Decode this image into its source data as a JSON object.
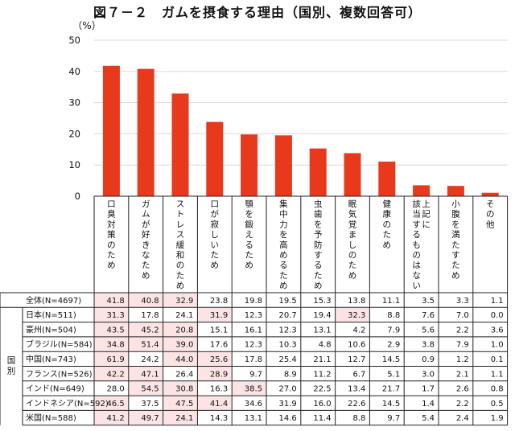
{
  "title": "図７－２　ガムを摂食する理由（国別、複数回答可）",
  "chart_data": {
    "type": "bar",
    "title": "図７－２　ガムを摂食する理由（国別、複数回答可）",
    "ylabel": "（%）",
    "ylim": [
      0,
      50
    ],
    "yticks": [
      0,
      10,
      20,
      30,
      40,
      50
    ],
    "bar_color": "#e8391d",
    "highlight_color": "#fce4e4",
    "categories": [
      "口臭対策のため",
      "ガムが好きなため",
      "ストレス緩和のため",
      "口が寂しいため",
      "顎を鍛えるため",
      "集中力を高めるため",
      "虫歯を予防するため",
      "眠気覚ましのため",
      "健康のため",
      "上記に該当するものはない",
      "小腹を満たすため",
      "その他"
    ],
    "values": [
      41.8,
      40.8,
      32.9,
      23.8,
      19.8,
      19.5,
      15.3,
      13.8,
      11.1,
      3.5,
      3.3,
      1.1
    ],
    "table": {
      "group_label": "国別",
      "rows": [
        {
          "label": "全体(N=4697)",
          "values": [
            "41.8",
            "40.8",
            "32.9",
            "23.8",
            "19.8",
            "19.5",
            "15.3",
            "13.8",
            "11.1",
            "3.5",
            "3.3",
            "1.1"
          ],
          "highlight": [
            0,
            1,
            2
          ]
        },
        {
          "label": "日本(N=511)",
          "values": [
            "31.3",
            "17.8",
            "24.1",
            "31.9",
            "12.3",
            "20.7",
            "19.4",
            "32.3",
            "8.8",
            "7.6",
            "7.0",
            "0.0"
          ],
          "highlight": [
            0,
            3,
            7
          ]
        },
        {
          "label": "豪州(N=504)",
          "values": [
            "43.5",
            "45.2",
            "20.8",
            "15.1",
            "16.1",
            "12.3",
            "13.1",
            "4.2",
            "7.9",
            "5.6",
            "2.2",
            "3.6"
          ],
          "highlight": [
            0,
            1,
            2
          ]
        },
        {
          "label": "ブラジル(N=584)",
          "values": [
            "34.8",
            "51.4",
            "39.0",
            "17.6",
            "12.3",
            "10.3",
            "4.8",
            "10.6",
            "2.9",
            "3.8",
            "7.9",
            "1.0"
          ],
          "highlight": [
            0,
            1,
            2
          ]
        },
        {
          "label": "中国(N=743)",
          "values": [
            "61.9",
            "24.2",
            "44.0",
            "25.6",
            "17.8",
            "25.4",
            "21.1",
            "12.7",
            "14.5",
            "0.9",
            "1.2",
            "0.1"
          ],
          "highlight": [
            0,
            2,
            3
          ]
        },
        {
          "label": "フランス(N=526)",
          "values": [
            "42.2",
            "47.1",
            "26.4",
            "28.9",
            "9.7",
            "8.9",
            "11.2",
            "6.7",
            "5.1",
            "3.0",
            "2.1",
            "1.1"
          ],
          "highlight": [
            0,
            1,
            3
          ]
        },
        {
          "label": "インド(N=649)",
          "values": [
            "28.0",
            "54.5",
            "30.8",
            "16.3",
            "38.5",
            "27.0",
            "22.5",
            "13.4",
            "21.7",
            "1.7",
            "2.6",
            "0.8"
          ],
          "highlight": [
            1,
            2,
            4
          ]
        },
        {
          "label": "インドネシア(N=592)",
          "values": [
            "46.5",
            "37.5",
            "47.5",
            "41.4",
            "34.6",
            "31.9",
            "16.0",
            "22.6",
            "14.5",
            "1.4",
            "2.2",
            "0.5"
          ],
          "highlight": [
            0,
            2,
            3
          ]
        },
        {
          "label": "米国(N=588)",
          "values": [
            "41.2",
            "49.7",
            "24.1",
            "14.3",
            "13.1",
            "14.6",
            "11.4",
            "8.8",
            "9.7",
            "5.4",
            "2.4",
            "1.9"
          ],
          "highlight": [
            0,
            1,
            2
          ]
        }
      ]
    }
  }
}
